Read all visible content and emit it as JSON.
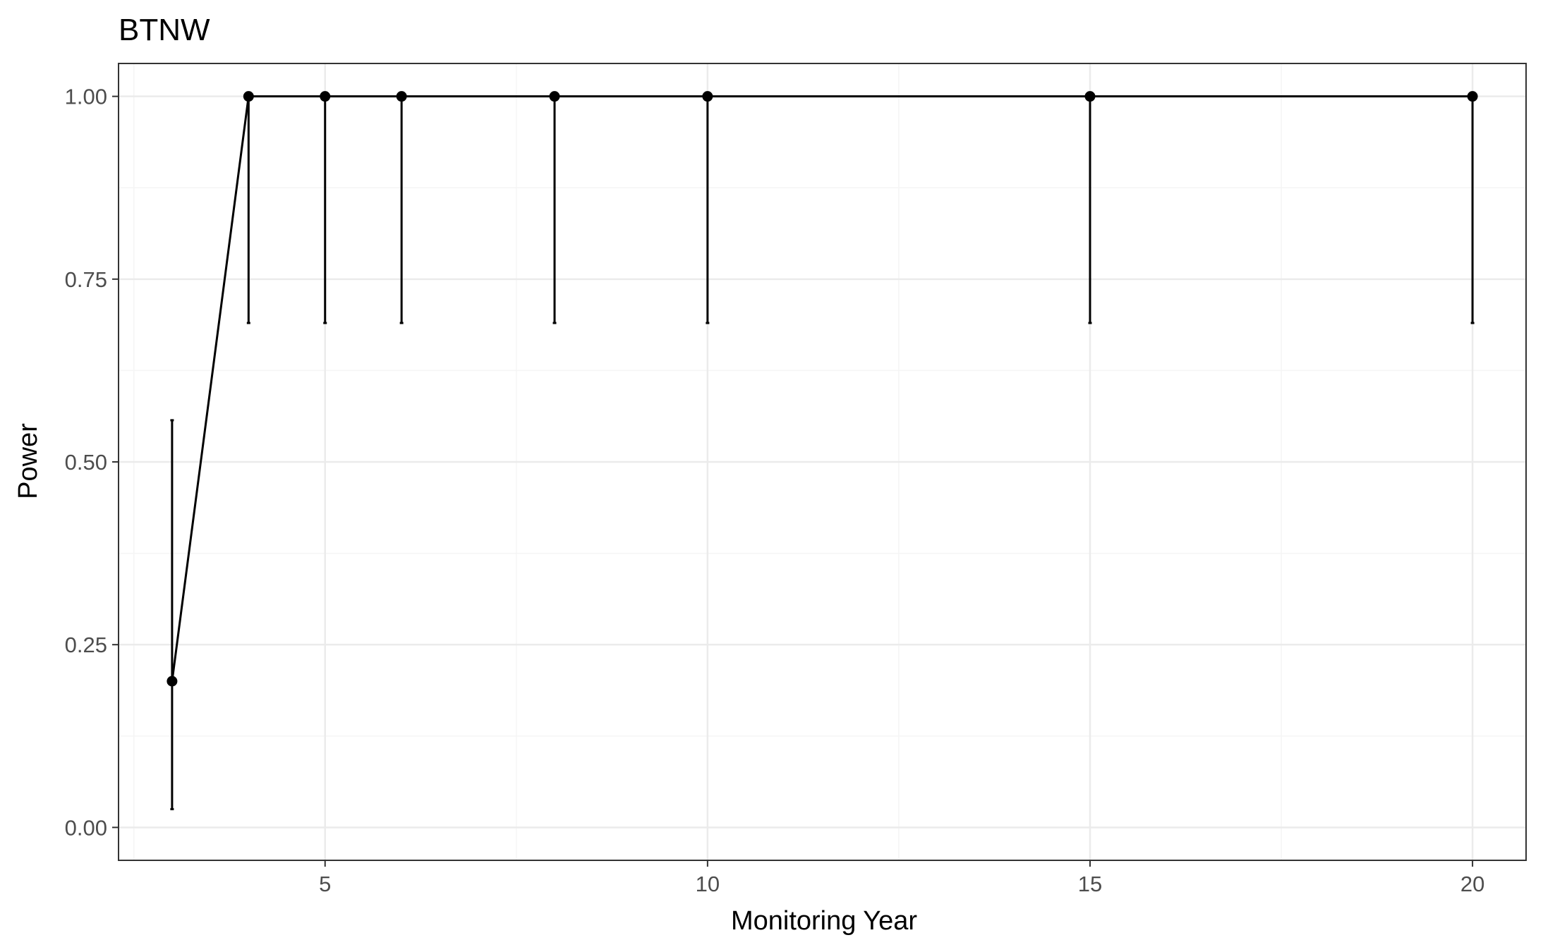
{
  "chart_data": {
    "type": "line",
    "title": "BTNW",
    "xlabel": "Monitoring Year",
    "ylabel": "Power",
    "xlim": [
      2.3,
      20.7
    ],
    "ylim": [
      -0.045,
      1.045
    ],
    "x_ticks": [
      5,
      10,
      15,
      20
    ],
    "x_tick_labels": [
      "5",
      "10",
      "15",
      "20"
    ],
    "y_ticks": [
      0,
      0.25,
      0.5,
      0.75,
      1.0
    ],
    "y_tick_labels": [
      "0.00",
      "0.25",
      "0.50",
      "0.75",
      "1.00"
    ],
    "grid": true,
    "legend": "none",
    "theme": {
      "background": "#ffffff",
      "panel_border": "#333333",
      "grid_major": "#ebebeb",
      "grid_minor": "#f5f5f5",
      "line_color": "#000000",
      "point_color": "#000000",
      "tick_label_color": "#4d4d4d"
    },
    "series": [
      {
        "x": [
          3,
          4,
          5,
          6,
          8,
          10,
          15,
          20
        ],
        "y": [
          0.2,
          1.0,
          1.0,
          1.0,
          1.0,
          1.0,
          1.0,
          1.0
        ],
        "ymin": [
          0.025,
          0.69,
          0.69,
          0.69,
          0.69,
          0.69,
          0.69,
          0.69
        ],
        "ymax": [
          0.557,
          1.0,
          1.0,
          1.0,
          1.0,
          1.0,
          1.0,
          1.0
        ]
      }
    ]
  }
}
